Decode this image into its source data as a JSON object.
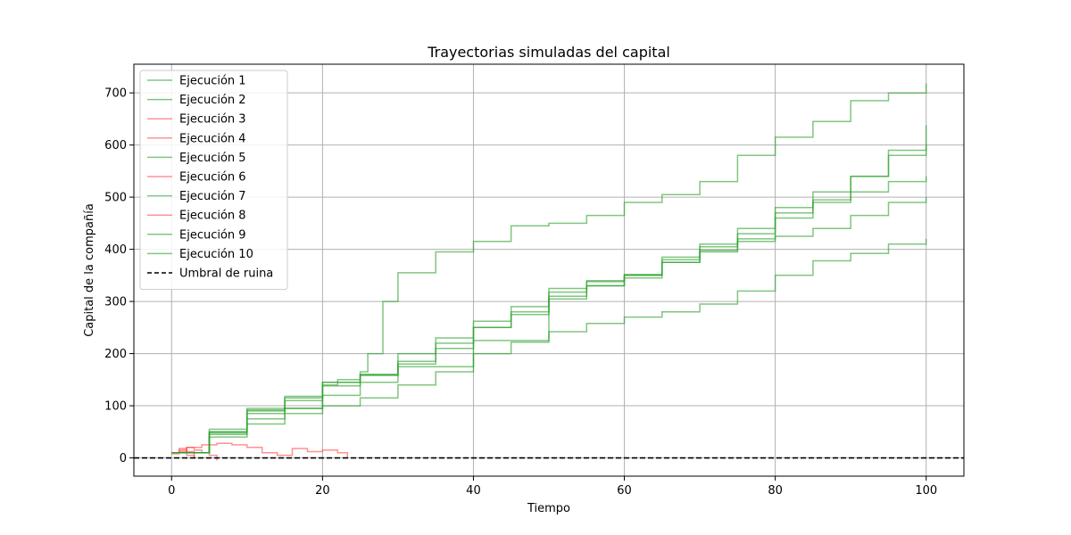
{
  "chart_data": {
    "type": "line",
    "title": "Trayectorias simuladas del capital",
    "xlabel": "Tiempo",
    "ylabel": "Capital de la compañía",
    "xlim": [
      -5,
      105
    ],
    "ylim": [
      -35,
      755
    ],
    "xticks": [
      0,
      20,
      40,
      60,
      80,
      100
    ],
    "yticks": [
      0,
      100,
      200,
      300,
      400,
      500,
      600,
      700
    ],
    "grid": true,
    "legend_position": "upper-left",
    "colors": {
      "survived": "#2ca02c",
      "ruined": "#ff4a4a",
      "threshold": "#000000",
      "grid": "#b0b0b0"
    },
    "series": [
      {
        "name": "Ejecución 1",
        "status": "survived",
        "points": [
          [
            0,
            10
          ],
          [
            5,
            55
          ],
          [
            10,
            95
          ],
          [
            20,
            145
          ],
          [
            25,
            160
          ],
          [
            30,
            175
          ],
          [
            40,
            225
          ],
          [
            50,
            305
          ],
          [
            55,
            330
          ],
          [
            60,
            352
          ],
          [
            65,
            375
          ],
          [
            70,
            398
          ],
          [
            75,
            415
          ],
          [
            80,
            425
          ],
          [
            85,
            440
          ],
          [
            90,
            465
          ],
          [
            95,
            490
          ],
          [
            100,
            500
          ]
        ]
      },
      {
        "name": "Ejecución 2",
        "status": "survived",
        "points": [
          [
            0,
            10
          ],
          [
            5,
            50
          ],
          [
            10,
            92
          ],
          [
            15,
            115
          ],
          [
            20,
            138
          ],
          [
            25,
            160
          ],
          [
            30,
            200
          ],
          [
            35,
            230
          ],
          [
            40,
            262
          ],
          [
            45,
            290
          ],
          [
            50,
            325
          ],
          [
            55,
            340
          ],
          [
            60,
            350
          ],
          [
            65,
            385
          ],
          [
            70,
            395
          ],
          [
            75,
            430
          ],
          [
            80,
            470
          ],
          [
            85,
            495
          ],
          [
            90,
            540
          ],
          [
            95,
            580
          ],
          [
            100,
            600
          ]
        ]
      },
      {
        "name": "Ejecución 3",
        "status": "ruined",
        "points": [
          [
            0,
            8
          ],
          [
            1,
            12
          ],
          [
            2,
            20
          ],
          [
            3,
            15
          ],
          [
            4,
            10
          ],
          [
            5,
            5
          ],
          [
            6,
            -5
          ]
        ]
      },
      {
        "name": "Ejecución 4",
        "status": "ruined",
        "points": [
          [
            0,
            10
          ],
          [
            2,
            20
          ],
          [
            4,
            25
          ],
          [
            6,
            28
          ],
          [
            8,
            25
          ],
          [
            10,
            20
          ],
          [
            12,
            10
          ],
          [
            14,
            5
          ],
          [
            16,
            18
          ],
          [
            18,
            12
          ],
          [
            20,
            15
          ],
          [
            22,
            10
          ],
          [
            23.3,
            0
          ]
        ]
      },
      {
        "name": "Ejecución 5",
        "status": "survived",
        "points": [
          [
            0,
            10
          ],
          [
            5,
            40
          ],
          [
            10,
            65
          ],
          [
            15,
            85
          ],
          [
            20,
            100
          ],
          [
            25,
            115
          ],
          [
            30,
            140
          ],
          [
            35,
            165
          ],
          [
            40,
            200
          ],
          [
            45,
            222
          ],
          [
            50,
            242
          ],
          [
            55,
            258
          ],
          [
            60,
            270
          ],
          [
            65,
            280
          ],
          [
            70,
            295
          ],
          [
            75,
            320
          ],
          [
            80,
            350
          ],
          [
            85,
            378
          ],
          [
            90,
            392
          ],
          [
            95,
            410
          ],
          [
            100,
            420
          ]
        ]
      },
      {
        "name": "Ejecución 6",
        "status": "ruined",
        "points": [
          [
            0,
            10
          ],
          [
            1,
            15
          ],
          [
            2,
            5
          ],
          [
            3,
            0
          ]
        ]
      },
      {
        "name": "Ejecución 7",
        "status": "survived",
        "points": [
          [
            0,
            10
          ],
          [
            5,
            50
          ],
          [
            10,
            85
          ],
          [
            15,
            110
          ],
          [
            20,
            140
          ],
          [
            22,
            150
          ],
          [
            25,
            165
          ],
          [
            26,
            200
          ],
          [
            28,
            300
          ],
          [
            30,
            355
          ],
          [
            35,
            395
          ],
          [
            40,
            415
          ],
          [
            45,
            445
          ],
          [
            50,
            450
          ],
          [
            55,
            465
          ],
          [
            60,
            490
          ],
          [
            65,
            505
          ],
          [
            70,
            530
          ],
          [
            75,
            580
          ],
          [
            80,
            615
          ],
          [
            85,
            645
          ],
          [
            90,
            685
          ],
          [
            95,
            700
          ],
          [
            100,
            718
          ]
        ]
      },
      {
        "name": "Ejecución 8",
        "status": "ruined",
        "points": [
          [
            0,
            10
          ],
          [
            1,
            18
          ],
          [
            2,
            12
          ],
          [
            3,
            0
          ]
        ]
      },
      {
        "name": "Ejecución 9",
        "status": "survived",
        "points": [
          [
            0,
            10
          ],
          [
            5,
            45
          ],
          [
            10,
            75
          ],
          [
            15,
            95
          ],
          [
            20,
            120
          ],
          [
            25,
            145
          ],
          [
            30,
            180
          ],
          [
            35,
            210
          ],
          [
            40,
            250
          ],
          [
            45,
            275
          ],
          [
            50,
            310
          ],
          [
            55,
            338
          ],
          [
            60,
            345
          ],
          [
            65,
            375
          ],
          [
            70,
            410
          ],
          [
            75,
            440
          ],
          [
            80,
            460
          ],
          [
            85,
            490
          ],
          [
            90,
            510
          ],
          [
            95,
            530
          ],
          [
            100,
            540
          ]
        ]
      },
      {
        "name": "Ejecución 10",
        "status": "survived",
        "points": [
          [
            0,
            10
          ],
          [
            5,
            48
          ],
          [
            10,
            90
          ],
          [
            15,
            118
          ],
          [
            20,
            145
          ],
          [
            25,
            158
          ],
          [
            30,
            185
          ],
          [
            35,
            220
          ],
          [
            40,
            250
          ],
          [
            45,
            280
          ],
          [
            50,
            318
          ],
          [
            55,
            330
          ],
          [
            60,
            350
          ],
          [
            65,
            380
          ],
          [
            70,
            405
          ],
          [
            75,
            420
          ],
          [
            80,
            480
          ],
          [
            85,
            510
          ],
          [
            90,
            540
          ],
          [
            95,
            590
          ],
          [
            100,
            638
          ]
        ]
      }
    ],
    "threshold": {
      "name": "Umbral de ruina",
      "y": 0,
      "style": "dashed"
    }
  }
}
